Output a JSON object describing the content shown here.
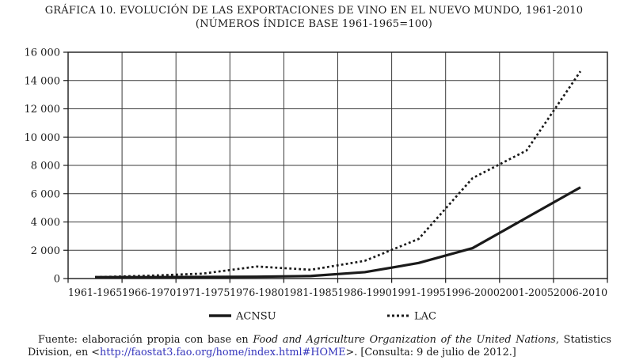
{
  "title": "GRÁFICA 10. EVOLUCIÓN DE LAS EXPORTACIONES DE VINO EN EL NUEVO MUNDO, 1961-2010",
  "subtitle": "(NÚMEROS ÍNDICE BASE 1961-1965=100)",
  "colors": {
    "line": "#1a1a1a",
    "grid": "#3a3a3a",
    "border": "#1a1a1a",
    "text": "#1a1a1a",
    "link_blue": "#3333bb",
    "background": "#ffffff"
  },
  "chart_data": {
    "type": "line",
    "title": "GRÁFICA 10. EVOLUCIÓN DE LAS EXPORTACIONES DE VINO EN EL NUEVO MUNDO, 1961-2010",
    "subtitle": "(NÚMEROS ÍNDICE BASE 1961-1965=100)",
    "categories": [
      "1961-1965",
      "1966-1970",
      "1971-1975",
      "1976-1980",
      "1981-1985",
      "1986-1990",
      "1991-1995",
      "1996-2000",
      "2001-2005",
      "2006-2010"
    ],
    "series": [
      {
        "name": "ACNSU",
        "line_style": "solid",
        "values": [
          100,
          100,
          110,
          130,
          180,
          450,
          1100,
          2150,
          4300,
          6450
        ]
      },
      {
        "name": "LAC",
        "line_style": "dotted",
        "values": [
          100,
          200,
          350,
          850,
          620,
          1250,
          2800,
          7100,
          9050,
          14650
        ]
      }
    ],
    "xlabel": "",
    "ylabel": "",
    "ylim": [
      0,
      16000
    ],
    "ytick_step": 2000,
    "ytick_labels": [
      "0",
      "2 000",
      "4 000",
      "6 000",
      "8 000",
      "10 000",
      "12 000",
      "14 000",
      "16 000"
    ],
    "grid": true,
    "legend_position": "bottom"
  },
  "footer": {
    "segments": [
      {
        "text": "Fuente: elaboración propia con base en "
      },
      {
        "text": "Food and Agriculture Organization of the United Nations"
      },
      {
        "text": ", Statistics Division, en <"
      },
      {
        "text": "http://faostat3.fao.org/home/index.html#HOME"
      },
      {
        "text": ">. [Consulta: 9 de julio de 2012.]"
      }
    ]
  }
}
